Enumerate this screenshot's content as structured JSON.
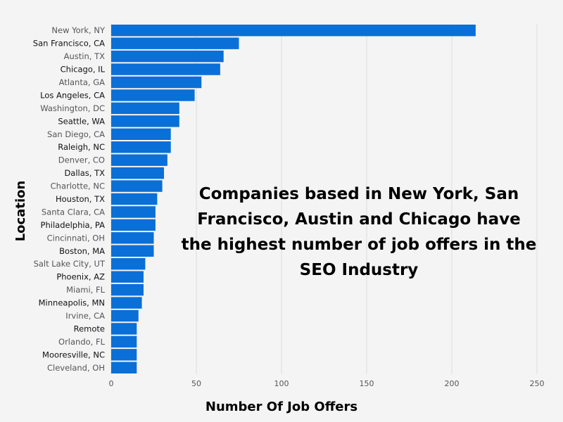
{
  "chart_data": {
    "type": "bar",
    "orientation": "horizontal",
    "xlabel": "Number Of Job Offers",
    "ylabel": "Location",
    "xlim": [
      0,
      250
    ],
    "xticks": [
      0,
      50,
      100,
      150,
      200,
      250
    ],
    "grid": true,
    "bar_color": "#0a6fd6",
    "annotation": "Companies based in New York, San Francisco, Austin and Chicago have the highest number of job offers in the SEO Industry",
    "categories": [
      "New York, NY",
      "San Francisco, CA",
      "Austin, TX",
      "Chicago, IL",
      "Atlanta, GA",
      "Los Angeles, CA",
      "Washington, DC",
      "Seattle, WA",
      "San Diego, CA",
      "Raleigh, NC",
      "Denver, CO",
      "Dallas, TX",
      "Charlotte, NC",
      "Houston, TX",
      "Santa Clara, CA",
      "Philadelphia, PA",
      "Cincinnati, OH",
      "Boston, MA",
      "Salt Lake City, UT",
      "Phoenix, AZ",
      "Miami, FL",
      "Minneapolis, MN",
      "Irvine, CA",
      "Remote",
      "Orlando, FL",
      "Mooresville, NC",
      "Cleveland, OH"
    ],
    "values": [
      214,
      75,
      66,
      64,
      53,
      49,
      40,
      40,
      35,
      35,
      33,
      31,
      30,
      27,
      26,
      26,
      25,
      25,
      20,
      19,
      19,
      18,
      16,
      15,
      15,
      15,
      15
    ]
  }
}
